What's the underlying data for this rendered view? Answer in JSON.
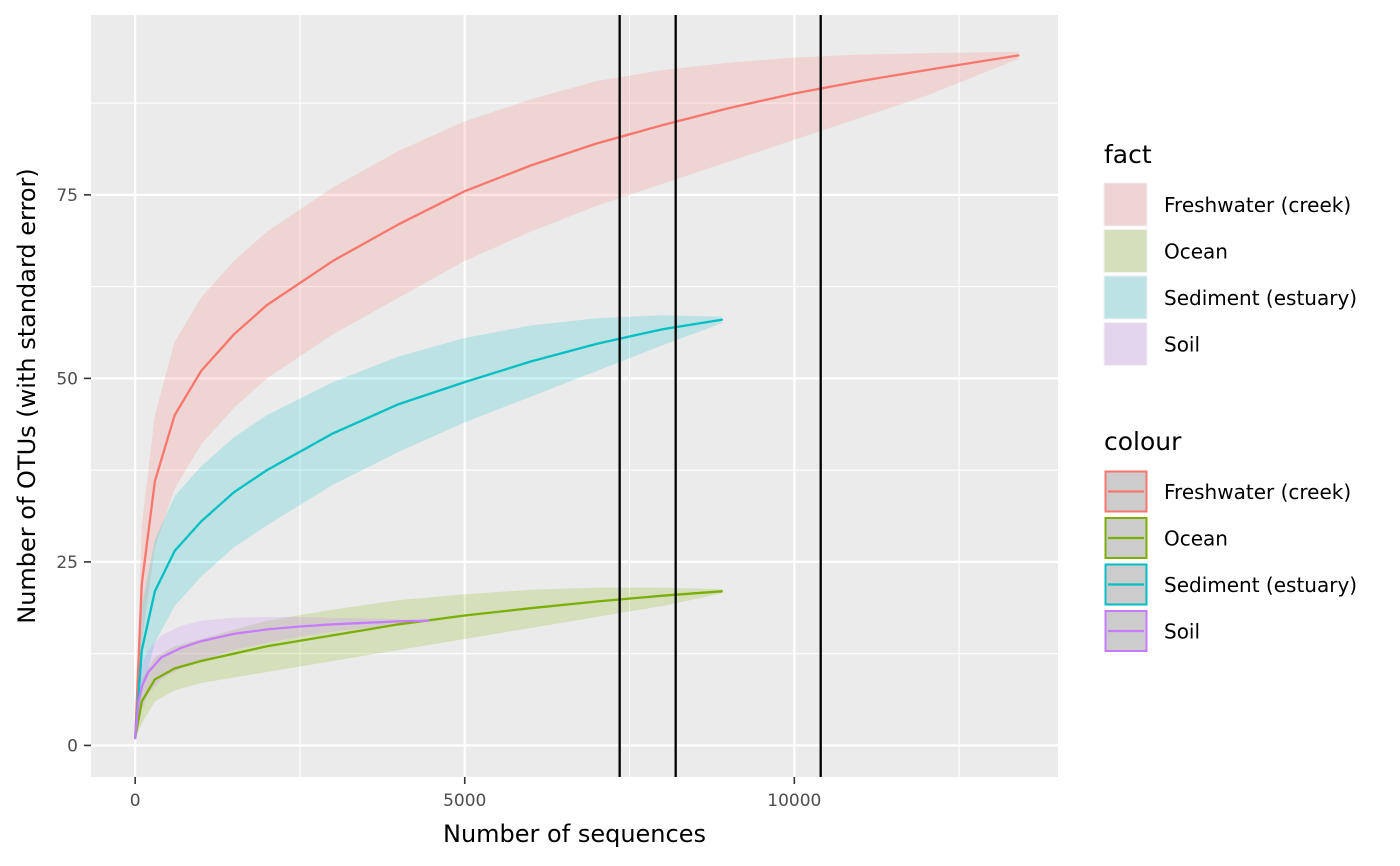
{
  "chart_data": {
    "type": "line",
    "xlabel": "Number of sequences",
    "ylabel": "Number of OTUs (with standard error)",
    "xlim": [
      -670,
      14000
    ],
    "ylim": [
      -4.3,
      99.5
    ],
    "x_ticks": [
      0,
      5000,
      10000
    ],
    "x_tick_labels": [
      "0",
      "5000",
      "10000"
    ],
    "y_ticks": [
      0,
      25,
      50,
      75
    ],
    "y_tick_labels": [
      "0",
      "25",
      "50",
      "75"
    ],
    "grid": true,
    "panel_background": "#ebebeb",
    "vlines": [
      7350,
      8200,
      10400
    ],
    "series": [
      {
        "name": "Freshwater (creek)",
        "color": "#f8766d",
        "x": [
          0,
          100,
          300,
          600,
          1000,
          1500,
          2000,
          3000,
          4000,
          5000,
          6000,
          7000,
          8000,
          9000,
          10000,
          11000,
          12000,
          13400
        ],
        "y": [
          1,
          22,
          36,
          45,
          51,
          56,
          60,
          66,
          71,
          75.5,
          79,
          82,
          84.5,
          86.8,
          88.8,
          90.5,
          92,
          94
        ],
        "lower": [
          1,
          14,
          27,
          35,
          41,
          46,
          50,
          56,
          61,
          66,
          70,
          73.5,
          76.5,
          79.5,
          82.5,
          85.5,
          88.5,
          93.5
        ],
        "upper": [
          1,
          30,
          45,
          55,
          61,
          66,
          70,
          76,
          81,
          85,
          88,
          90.5,
          92,
          93,
          93.7,
          94.1,
          94.3,
          94.5
        ]
      },
      {
        "name": "Ocean",
        "color": "#7cae00",
        "x": [
          0,
          100,
          300,
          600,
          1000,
          2000,
          3000,
          4000,
          5000,
          6000,
          7000,
          8000,
          8900
        ],
        "y": [
          1,
          6,
          9,
          10.5,
          11.5,
          13.5,
          15,
          16.5,
          17.7,
          18.7,
          19.6,
          20.4,
          21
        ],
        "lower": [
          1,
          3,
          6,
          7.5,
          8.5,
          10,
          11.5,
          13,
          14.5,
          16,
          17.5,
          19,
          20.7
        ],
        "upper": [
          1,
          9,
          12,
          13.5,
          14.5,
          17,
          18.5,
          19.8,
          20.6,
          21.2,
          21.5,
          21.5,
          21.3
        ]
      },
      {
        "name": "Sediment (estuary)",
        "color": "#00bfc4",
        "x": [
          0,
          100,
          300,
          600,
          1000,
          1500,
          2000,
          3000,
          4000,
          5000,
          6000,
          7000,
          8000,
          8900
        ],
        "y": [
          1,
          13,
          21,
          26.5,
          30.5,
          34.5,
          37.5,
          42.5,
          46.5,
          49.5,
          52.3,
          54.7,
          56.7,
          58
        ],
        "lower": [
          1,
          7,
          14,
          19,
          23,
          27,
          30,
          35.5,
          40,
          44,
          47.5,
          51,
          54.5,
          57.5
        ],
        "upper": [
          1,
          19,
          28,
          34,
          38,
          42,
          45,
          49.5,
          53,
          55.5,
          57.2,
          58.2,
          58.6,
          58.4
        ]
      },
      {
        "name": "Soil",
        "color": "#c77cff",
        "x": [
          0,
          50,
          100,
          200,
          400,
          700,
          1000,
          1500,
          2000,
          2500,
          3000,
          3500,
          4000,
          4450
        ],
        "y": [
          1,
          6,
          8,
          10,
          12,
          13.3,
          14.2,
          15.2,
          15.8,
          16.2,
          16.5,
          16.7,
          16.9,
          17
        ],
        "lower": [
          1,
          3,
          5,
          7,
          9,
          10.5,
          11.5,
          13,
          14,
          14.8,
          15.5,
          16,
          16.5,
          16.8
        ],
        "upper": [
          1,
          9,
          11,
          13,
          15,
          16.3,
          17,
          17.4,
          17.5,
          17.5,
          17.4,
          17.3,
          17.2,
          17.1
        ]
      }
    ],
    "legends": [
      {
        "title": "fact",
        "kind": "fill",
        "placement": "right",
        "entries": [
          "Freshwater (creek)",
          "Ocean",
          "Sediment (estuary)",
          "Soil"
        ]
      },
      {
        "title": "colour",
        "kind": "line",
        "placement": "right",
        "entries": [
          "Freshwater (creek)",
          "Ocean",
          "Sediment (estuary)",
          "Soil"
        ]
      }
    ]
  }
}
